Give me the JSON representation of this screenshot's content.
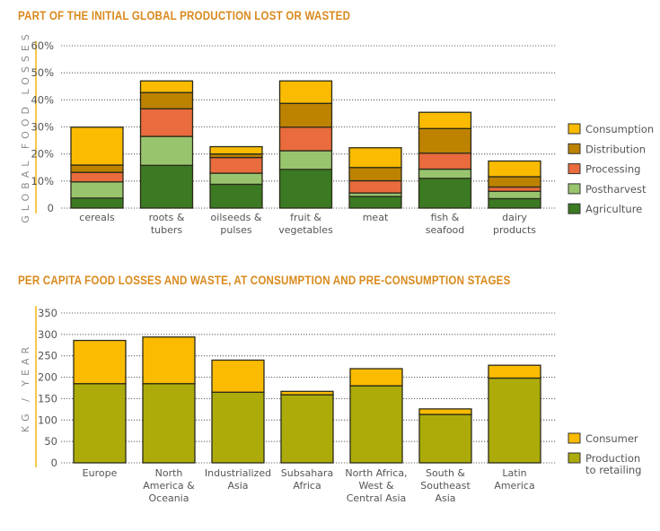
{
  "chart_data": [
    {
      "type": "bar",
      "stacked": true,
      "title": "PART OF THE INITIAL GLOBAL PRODUCTION LOST OR WASTED",
      "ylabel": "GLOBAL FOOD LOSSES",
      "xlabel": "",
      "ylim": [
        0,
        60
      ],
      "yticks": [
        "0",
        "10%",
        "20%",
        "30%",
        "40%",
        "50%",
        "60%"
      ],
      "ytick_values": [
        0,
        10,
        20,
        30,
        40,
        50,
        60
      ],
      "grid": true,
      "legend_position": "right",
      "categories": [
        [
          "cereals"
        ],
        [
          "roots &",
          "tubers"
        ],
        [
          "oilseeds &",
          "pulses"
        ],
        [
          "fruit &",
          "vegetables"
        ],
        [
          "meat"
        ],
        [
          "fish &",
          "seafood"
        ],
        [
          "dairy",
          "products"
        ]
      ],
      "series": [
        {
          "name": "Agriculture",
          "color": "#3b7a22",
          "values": [
            3.7,
            15.8,
            8.8,
            14.3,
            4.3,
            11.0,
            3.5
          ]
        },
        {
          "name": "Postharvest",
          "color": "#98c46e",
          "values": [
            6.0,
            10.7,
            4.1,
            6.9,
            1.3,
            3.4,
            2.7
          ]
        },
        {
          "name": "Processing",
          "color": "#ea6b3d",
          "values": [
            3.5,
            10.2,
            5.8,
            8.7,
            4.5,
            5.9,
            1.6
          ]
        },
        {
          "name": "Distribution",
          "color": "#bd8200",
          "values": [
            2.7,
            6.0,
            1.3,
            8.8,
            4.9,
            9.1,
            3.8
          ]
        },
        {
          "name": "Consumption",
          "color": "#fbbb00",
          "values": [
            14.0,
            4.3,
            2.7,
            8.3,
            7.3,
            6.0,
            5.8
          ]
        }
      ],
      "legend_order": [
        "Consumption",
        "Distribution",
        "Processing",
        "Postharvest",
        "Agriculture"
      ]
    },
    {
      "type": "bar",
      "stacked": true,
      "title": "PER CAPITA FOOD LOSSES AND WASTE, AT CONSUMPTION AND PRE-CONSUMPTION STAGES",
      "ylabel": "KG / YEAR",
      "xlabel": "",
      "ylim": [
        0,
        350
      ],
      "yticks": [
        "0",
        "50",
        "100",
        "150",
        "200",
        "250",
        "300",
        "350"
      ],
      "ytick_values": [
        0,
        50,
        100,
        150,
        200,
        250,
        300,
        350
      ],
      "grid": true,
      "legend_position": "right",
      "categories": [
        [
          "Europe"
        ],
        [
          "North",
          "America &",
          "Oceania"
        ],
        [
          "Industrialized",
          "Asia"
        ],
        [
          "Subsahara",
          "Africa"
        ],
        [
          "North Africa,",
          "West &",
          "Central Asia"
        ],
        [
          "South &",
          "Southeast",
          "Asia"
        ],
        [
          "Latin",
          "America"
        ]
      ],
      "series": [
        {
          "name": "Production to retailing",
          "color": "#adab0a",
          "values": [
            185,
            185,
            165,
            159,
            180,
            113,
            198
          ]
        },
        {
          "name": "Consumer",
          "color": "#fbbb00",
          "values": [
            101,
            109,
            75,
            8,
            40,
            13,
            30
          ]
        }
      ],
      "legend": [
        {
          "name": "Consumer",
          "lines": [
            "Consumer"
          ],
          "color": "#fbbb00"
        },
        {
          "name": "Production to retailing",
          "lines": [
            "Production",
            "to retailing"
          ],
          "color": "#adab0a"
        }
      ]
    }
  ],
  "colors": {
    "title": "#d98a1e",
    "axis_rule": "#f7c84a",
    "grid": "#666666",
    "bar_outline": "#2b2b1a"
  }
}
